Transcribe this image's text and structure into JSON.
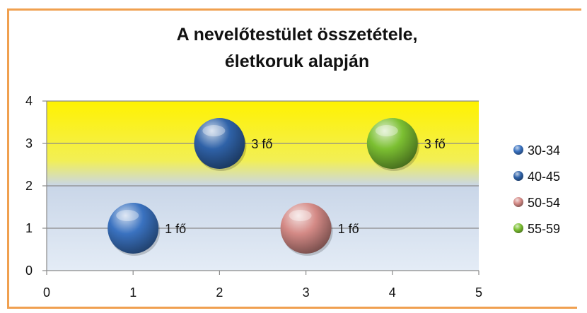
{
  "chart_data": {
    "type": "bubble",
    "title_line1": "A nevelőtestület összetétele,",
    "title_line2": "életkoruk alapján",
    "xlim": [
      0,
      5
    ],
    "ylim": [
      0,
      4
    ],
    "x_ticks": [
      0,
      1,
      2,
      3,
      4,
      5
    ],
    "y_ticks": [
      0,
      1,
      2,
      3,
      4
    ],
    "grid": "horizontal",
    "legend_position": "right",
    "series": [
      {
        "name": "30-34",
        "x": 1,
        "y": 1,
        "label": "1 fő",
        "color": "#3a72c0"
      },
      {
        "name": "40-45",
        "x": 2,
        "y": 3,
        "label": "3 fő",
        "color": "#2f62a8"
      },
      {
        "name": "50-54",
        "x": 3,
        "y": 1,
        "label": "1 fő",
        "color": "#d48a86"
      },
      {
        "name": "55-59",
        "x": 4,
        "y": 3,
        "label": "3 fő",
        "color": "#7cc032"
      }
    ]
  }
}
